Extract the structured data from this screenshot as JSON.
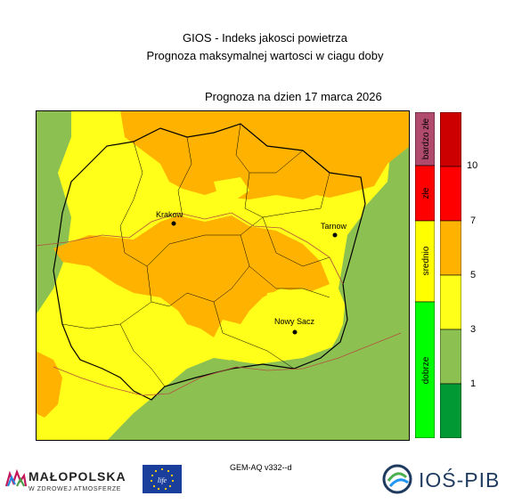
{
  "header": {
    "line1": "GIOS - Indeks jakosci powietrza",
    "line2": "Prognoza maksymalnej wartosci w ciagu doby",
    "date_line": "Prognoza na dzien  17 marca 2026"
  },
  "map": {
    "cities": [
      {
        "name": "Krakow"
      },
      {
        "name": "Tarnow"
      },
      {
        "name": "Nowy Sacz"
      }
    ],
    "colors": {
      "green": "#8cc152",
      "yellow": "#ffff1a",
      "orange": "#ffb300",
      "border_black": "#000000",
      "border_red": "#b4503c"
    }
  },
  "legend": {
    "categories": [
      {
        "label": "bardzo złe",
        "color": "#b04b6e"
      },
      {
        "label": "złe",
        "color": "#ff0000"
      },
      {
        "label": "srednio",
        "color": "#ffff00"
      },
      {
        "label": "dobrze",
        "color": "#00ff00"
      }
    ],
    "scale_colors": [
      "#009933",
      "#8cc152",
      "#ffff1a",
      "#ffb300",
      "#ff0000",
      "#cc0000"
    ],
    "tick_labels": [
      "10",
      "7",
      "5",
      "3",
      "1"
    ]
  },
  "footer": {
    "model": "GEM-AQ v332--d",
    "logo_left_title": "MAŁOPOLSKA",
    "logo_left_subtitle": "W ZDROWEJ ATMOSFERZE",
    "logo_eu_text": "life",
    "logo_right_text": "IOŚ-PIB"
  }
}
